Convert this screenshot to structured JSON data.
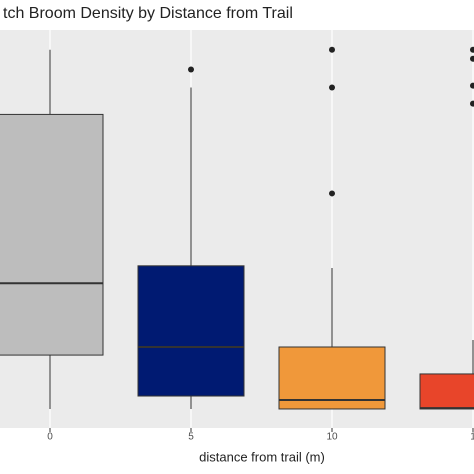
{
  "chart_data": {
    "type": "boxplot",
    "title": "tch Broom Density by Distance from Trail",
    "x_label": "distance from trail (m)",
    "categories": [
      "0",
      "5",
      "10",
      "1"
    ],
    "ylim": [
      -1.06,
      21.1
    ],
    "grid": true,
    "boxes": [
      {
        "min": 0,
        "q1": 3.0,
        "median": 7.0,
        "q3": 16.4,
        "max": 20,
        "outliers": [],
        "color": "#bdbdbd"
      },
      {
        "min": 0,
        "q1": 0.72,
        "median": 3.45,
        "q3": 7.97,
        "max": 17.9,
        "outliers": [
          18.9
        ],
        "color": "#001a72"
      },
      {
        "min": 0,
        "q1": 0,
        "median": 0.5,
        "q3": 3.45,
        "max": 7.85,
        "outliers": [
          12.0,
          17.9,
          20
        ],
        "color": "#f0983a"
      },
      {
        "min": 0,
        "q1": 0,
        "median": 0.05,
        "q3": 1.95,
        "max": 3.84,
        "outliers": [
          17.0,
          18.0,
          19.5,
          20
        ],
        "color": "#e8452a"
      }
    ]
  }
}
